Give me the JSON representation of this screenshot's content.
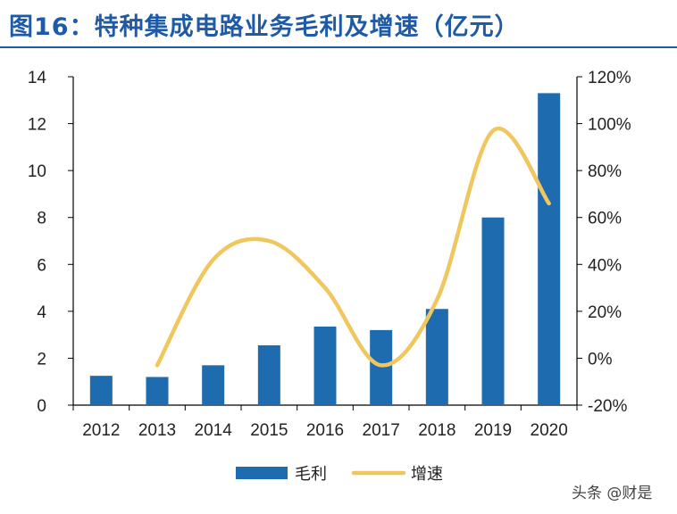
{
  "title": "图16：特种集成电路业务毛利及增速（亿元）",
  "watermark": "头条 @财是",
  "colors": {
    "bar": "#1f6bb0",
    "line": "#f0c75e",
    "axis": "#000000",
    "title": "#1f5aa6"
  },
  "chart_data": {
    "type": "bar",
    "categories": [
      "2012",
      "2013",
      "2014",
      "2015",
      "2016",
      "2017",
      "2018",
      "2019",
      "2020"
    ],
    "series": [
      {
        "name": "毛利",
        "type": "bar",
        "axis": "left",
        "values": [
          1.25,
          1.2,
          1.7,
          2.55,
          3.35,
          3.2,
          4.1,
          8.0,
          13.3
        ]
      },
      {
        "name": "增速",
        "type": "line",
        "axis": "right",
        "smooth": true,
        "values": [
          null,
          -0.03,
          0.42,
          0.5,
          0.3,
          -0.03,
          0.25,
          0.97,
          0.66
        ]
      }
    ],
    "y_left": {
      "ylim": [
        0,
        14
      ],
      "ticks": [
        "0",
        "2",
        "4",
        "6",
        "8",
        "10",
        "12",
        "14"
      ]
    },
    "y_right": {
      "ylim": [
        -0.2,
        1.2
      ],
      "ticks": [
        "-20%",
        "0%",
        "20%",
        "40%",
        "60%",
        "80%",
        "100%",
        "120%"
      ]
    },
    "legend": {
      "placement": "bottom",
      "entries": [
        "毛利",
        "增速"
      ]
    },
    "grid": false
  }
}
